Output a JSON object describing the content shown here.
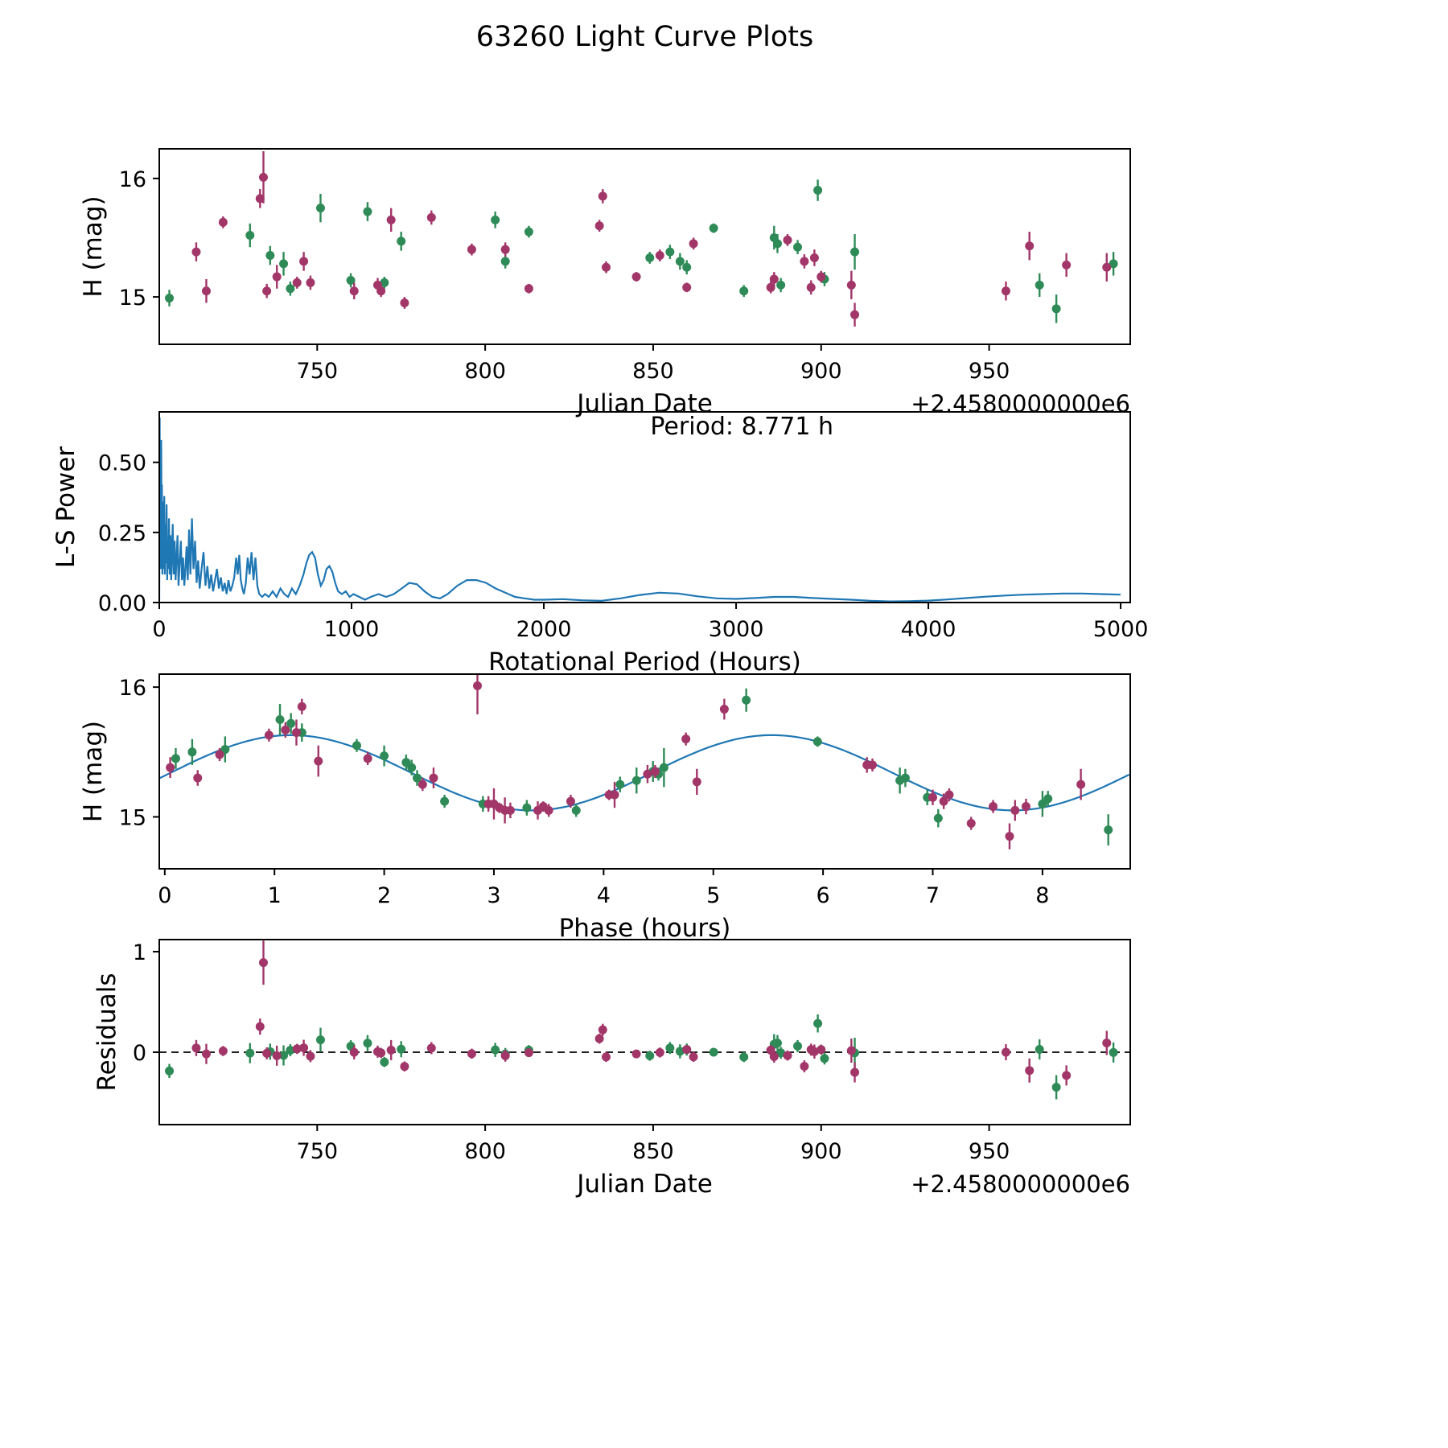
{
  "colors": {
    "green": "#2e8b57",
    "purple": "#a23669",
    "line": "#1f77b4",
    "axis": "#000000",
    "background": "#ffffff"
  },
  "chart_data": {
    "title": "63260 Light Curve Plots",
    "observation_columns": [
      "jd_minus_2458000",
      "phase_hours",
      "mag",
      "err",
      "series"
    ],
    "series_colors": {
      "g": "#2e8b57",
      "p": "#a23669"
    },
    "observations": [
      [
        706,
        7.05,
        14.99,
        0.07,
        "g"
      ],
      [
        730,
        0.55,
        15.52,
        0.1,
        "g"
      ],
      [
        736,
        4.45,
        15.35,
        0.08,
        "g"
      ],
      [
        740,
        6.7,
        15.28,
        0.1,
        "g"
      ],
      [
        742,
        3.3,
        15.07,
        0.06,
        "g"
      ],
      [
        751,
        1.05,
        15.75,
        0.12,
        "g"
      ],
      [
        760,
        8.05,
        15.14,
        0.06,
        "g"
      ],
      [
        765,
        1.15,
        15.72,
        0.08,
        "g"
      ],
      [
        770,
        2.55,
        15.12,
        0.05,
        "g"
      ],
      [
        775,
        2.0,
        15.47,
        0.08,
        "g"
      ],
      [
        803,
        1.25,
        15.65,
        0.07,
        "g"
      ],
      [
        806,
        2.3,
        15.3,
        0.06,
        "g"
      ],
      [
        813,
        1.75,
        15.55,
        0.05,
        "g"
      ],
      [
        849,
        4.5,
        15.33,
        0.05,
        "g"
      ],
      [
        855,
        2.25,
        15.38,
        0.06,
        "g"
      ],
      [
        858,
        6.75,
        15.3,
        0.07,
        "g"
      ],
      [
        860,
        4.15,
        15.25,
        0.06,
        "g"
      ],
      [
        868,
        5.95,
        15.58,
        0.04,
        "g"
      ],
      [
        877,
        3.75,
        15.05,
        0.05,
        "g"
      ],
      [
        886,
        0.25,
        15.5,
        0.1,
        "g"
      ],
      [
        887,
        0.1,
        15.45,
        0.08,
        "g"
      ],
      [
        888,
        2.9,
        15.1,
        0.06,
        "g"
      ],
      [
        893,
        2.2,
        15.42,
        0.06,
        "g"
      ],
      [
        899,
        5.3,
        15.9,
        0.09,
        "g"
      ],
      [
        901,
        6.95,
        15.15,
        0.06,
        "g"
      ],
      [
        910,
        4.55,
        15.38,
        0.15,
        "g"
      ],
      [
        965,
        8.0,
        15.1,
        0.1,
        "g"
      ],
      [
        970,
        8.6,
        14.9,
        0.12,
        "g"
      ],
      [
        987,
        4.3,
        15.28,
        0.1,
        "g"
      ],
      [
        714,
        0.05,
        15.38,
        0.08,
        "p"
      ],
      [
        717,
        3.1,
        15.05,
        0.1,
        "p"
      ],
      [
        722,
        0.95,
        15.63,
        0.05,
        "p"
      ],
      [
        733,
        5.1,
        15.83,
        0.08,
        "p"
      ],
      [
        734,
        2.85,
        16.01,
        0.22,
        "p"
      ],
      [
        735,
        3.15,
        15.05,
        0.06,
        "p"
      ],
      [
        738,
        4.1,
        15.17,
        0.1,
        "p"
      ],
      [
        744,
        3.7,
        15.12,
        0.05,
        "p"
      ],
      [
        746,
        2.45,
        15.3,
        0.08,
        "p"
      ],
      [
        748,
        7.1,
        15.12,
        0.06,
        "p"
      ],
      [
        761,
        3.4,
        15.05,
        0.07,
        "p"
      ],
      [
        768,
        2.95,
        15.1,
        0.06,
        "p"
      ],
      [
        769,
        3.5,
        15.05,
        0.05,
        "p"
      ],
      [
        772,
        1.2,
        15.65,
        0.1,
        "p"
      ],
      [
        776,
        7.35,
        14.95,
        0.05,
        "p"
      ],
      [
        784,
        1.1,
        15.67,
        0.06,
        "p"
      ],
      [
        796,
        6.45,
        15.4,
        0.05,
        "p"
      ],
      [
        806,
        6.4,
        15.4,
        0.06,
        "p"
      ],
      [
        813,
        3.05,
        15.07,
        0.04,
        "p"
      ],
      [
        834,
        4.75,
        15.6,
        0.05,
        "p"
      ],
      [
        835,
        1.25,
        15.85,
        0.06,
        "p"
      ],
      [
        836,
        2.35,
        15.25,
        0.05,
        "p"
      ],
      [
        845,
        4.05,
        15.17,
        0.04,
        "p"
      ],
      [
        852,
        4.47,
        15.35,
        0.05,
        "p"
      ],
      [
        860,
        3.45,
        15.08,
        0.04,
        "p"
      ],
      [
        862,
        1.85,
        15.45,
        0.05,
        "p"
      ],
      [
        885,
        7.55,
        15.08,
        0.05,
        "p"
      ],
      [
        886,
        7.0,
        15.15,
        0.06,
        "p"
      ],
      [
        890,
        0.5,
        15.48,
        0.05,
        "p"
      ],
      [
        895,
        0.3,
        15.3,
        0.06,
        "p"
      ],
      [
        897,
        7.85,
        15.08,
        0.06,
        "p"
      ],
      [
        898,
        4.4,
        15.33,
        0.07,
        "p"
      ],
      [
        900,
        7.15,
        15.17,
        0.05,
        "p"
      ],
      [
        909,
        3.0,
        15.1,
        0.12,
        "p"
      ],
      [
        910,
        7.7,
        14.85,
        0.1,
        "p"
      ],
      [
        955,
        7.75,
        15.05,
        0.08,
        "p"
      ],
      [
        962,
        1.4,
        15.43,
        0.12,
        "p"
      ],
      [
        973,
        4.85,
        15.27,
        0.1,
        "p"
      ],
      [
        985,
        8.35,
        15.25,
        0.12,
        "p"
      ]
    ],
    "panels": [
      {
        "id": "lightcurve",
        "type": "scatter",
        "xlabel": "Julian Date",
        "x_offset_label": "+2.4580000000e6",
        "ylabel": "H (mag)",
        "xlim": [
          703,
          992
        ],
        "ylim": [
          14.6,
          16.25
        ],
        "xticks": [
          750,
          800,
          850,
          900,
          950
        ],
        "yticks": [
          15,
          16
        ],
        "yticklabels": [
          "15",
          "16"
        ]
      },
      {
        "id": "periodogram",
        "type": "line",
        "xlabel": "Rotational Period (Hours)",
        "ylabel": "L-S Power",
        "annotation": "Period: 8.771 h",
        "xlim": [
          0,
          5050
        ],
        "ylim": [
          0,
          0.68
        ],
        "xticks": [
          0,
          1000,
          2000,
          3000,
          4000,
          5000
        ],
        "yticks": [
          0,
          0.25,
          0.5
        ],
        "yticklabels": [
          "0.00",
          "0.25",
          "0.50"
        ],
        "points": [
          [
            0,
            0.01
          ],
          [
            2,
            0.66
          ],
          [
            4,
            0.18
          ],
          [
            6,
            0.52
          ],
          [
            8,
            0.12
          ],
          [
            10,
            0.58
          ],
          [
            12,
            0.25
          ],
          [
            14,
            0.42
          ],
          [
            16,
            0.1
          ],
          [
            18,
            0.36
          ],
          [
            20,
            0.3
          ],
          [
            23,
            0.12
          ],
          [
            26,
            0.38
          ],
          [
            29,
            0.1
          ],
          [
            32,
            0.28
          ],
          [
            35,
            0.14
          ],
          [
            38,
            0.35
          ],
          [
            41,
            0.08
          ],
          [
            44,
            0.22
          ],
          [
            47,
            0.12
          ],
          [
            50,
            0.3
          ],
          [
            54,
            0.1
          ],
          [
            58,
            0.24
          ],
          [
            62,
            0.08
          ],
          [
            66,
            0.18
          ],
          [
            70,
            0.28
          ],
          [
            75,
            0.1
          ],
          [
            80,
            0.22
          ],
          [
            85,
            0.08
          ],
          [
            90,
            0.16
          ],
          [
            95,
            0.24
          ],
          [
            100,
            0.06
          ],
          [
            106,
            0.14
          ],
          [
            112,
            0.22
          ],
          [
            118,
            0.08
          ],
          [
            124,
            0.16
          ],
          [
            130,
            0.06
          ],
          [
            136,
            0.12
          ],
          [
            142,
            0.2
          ],
          [
            148,
            0.08
          ],
          [
            155,
            0.26
          ],
          [
            162,
            0.1
          ],
          [
            170,
            0.3
          ],
          [
            178,
            0.12
          ],
          [
            186,
            0.22
          ],
          [
            194,
            0.07
          ],
          [
            202,
            0.15
          ],
          [
            210,
            0.05
          ],
          [
            220,
            0.12
          ],
          [
            230,
            0.18
          ],
          [
            240,
            0.06
          ],
          [
            250,
            0.13
          ],
          [
            260,
            0.05
          ],
          [
            270,
            0.1
          ],
          [
            280,
            0.04
          ],
          [
            290,
            0.08
          ],
          [
            300,
            0.12
          ],
          [
            310,
            0.05
          ],
          [
            320,
            0.09
          ],
          [
            330,
            0.04
          ],
          [
            340,
            0.07
          ],
          [
            350,
            0.03
          ],
          [
            360,
            0.08
          ],
          [
            370,
            0.04
          ],
          [
            380,
            0.06
          ],
          [
            390,
            0.09
          ],
          [
            400,
            0.16
          ],
          [
            408,
            0.1
          ],
          [
            416,
            0.17
          ],
          [
            424,
            0.08
          ],
          [
            432,
            0.05
          ],
          [
            440,
            0.03
          ],
          [
            450,
            0.07
          ],
          [
            460,
            0.16
          ],
          [
            470,
            0.1
          ],
          [
            480,
            0.18
          ],
          [
            490,
            0.08
          ],
          [
            500,
            0.16
          ],
          [
            510,
            0.06
          ],
          [
            520,
            0.03
          ],
          [
            535,
            0.02
          ],
          [
            550,
            0.03
          ],
          [
            570,
            0.02
          ],
          [
            590,
            0.04
          ],
          [
            610,
            0.02
          ],
          [
            630,
            0.05
          ],
          [
            650,
            0.03
          ],
          [
            670,
            0.02
          ],
          [
            690,
            0.05
          ],
          [
            710,
            0.03
          ],
          [
            730,
            0.06
          ],
          [
            750,
            0.1
          ],
          [
            765,
            0.14
          ],
          [
            780,
            0.17
          ],
          [
            795,
            0.18
          ],
          [
            810,
            0.16
          ],
          [
            825,
            0.1
          ],
          [
            840,
            0.06
          ],
          [
            855,
            0.08
          ],
          [
            870,
            0.12
          ],
          [
            885,
            0.13
          ],
          [
            900,
            0.11
          ],
          [
            915,
            0.07
          ],
          [
            930,
            0.04
          ],
          [
            950,
            0.03
          ],
          [
            970,
            0.04
          ],
          [
            990,
            0.02
          ],
          [
            1010,
            0.03
          ],
          [
            1040,
            0.02
          ],
          [
            1070,
            0.01
          ],
          [
            1100,
            0.02
          ],
          [
            1140,
            0.03
          ],
          [
            1180,
            0.02
          ],
          [
            1220,
            0.03
          ],
          [
            1260,
            0.05
          ],
          [
            1300,
            0.07
          ],
          [
            1340,
            0.065
          ],
          [
            1380,
            0.04
          ],
          [
            1420,
            0.02
          ],
          [
            1460,
            0.015
          ],
          [
            1500,
            0.03
          ],
          [
            1550,
            0.06
          ],
          [
            1600,
            0.08
          ],
          [
            1650,
            0.08
          ],
          [
            1700,
            0.07
          ],
          [
            1750,
            0.05
          ],
          [
            1800,
            0.035
          ],
          [
            1850,
            0.02
          ],
          [
            1900,
            0.015
          ],
          [
            1950,
            0.01
          ],
          [
            2000,
            0.01
          ],
          [
            2100,
            0.012
          ],
          [
            2200,
            0.008
          ],
          [
            2300,
            0.006
          ],
          [
            2400,
            0.015
          ],
          [
            2500,
            0.027
          ],
          [
            2600,
            0.035
          ],
          [
            2700,
            0.032
          ],
          [
            2800,
            0.022
          ],
          [
            2900,
            0.015
          ],
          [
            3000,
            0.013
          ],
          [
            3100,
            0.016
          ],
          [
            3200,
            0.02
          ],
          [
            3300,
            0.02
          ],
          [
            3400,
            0.016
          ],
          [
            3500,
            0.013
          ],
          [
            3600,
            0.01
          ],
          [
            3700,
            0.006
          ],
          [
            3800,
            0.004
          ],
          [
            3900,
            0.005
          ],
          [
            4000,
            0.007
          ],
          [
            4100,
            0.011
          ],
          [
            4200,
            0.016
          ],
          [
            4300,
            0.021
          ],
          [
            4400,
            0.025
          ],
          [
            4500,
            0.028
          ],
          [
            4600,
            0.03
          ],
          [
            4700,
            0.032
          ],
          [
            4800,
            0.032
          ],
          [
            4900,
            0.03
          ],
          [
            5000,
            0.028
          ]
        ]
      },
      {
        "id": "phase",
        "type": "scatter+line",
        "xlabel": "Phase (hours)",
        "ylabel": "H (mag)",
        "xlim": [
          -0.05,
          8.8
        ],
        "ylim": [
          14.6,
          16.1
        ],
        "xticks": [
          0,
          1,
          2,
          3,
          4,
          5,
          6,
          7,
          8
        ],
        "yticks": [
          15,
          16
        ],
        "yticklabels": [
          "15",
          "16"
        ],
        "fit": {
          "mean": 15.34,
          "amplitude": 0.29,
          "period_hours": 8.771,
          "phase_of_max": 1.15,
          "harmonic": 2
        }
      },
      {
        "id": "residuals",
        "type": "scatter",
        "xlabel": "Julian Date",
        "x_offset_label": "+2.4580000000e6",
        "ylabel": "Residuals",
        "xlim": [
          703,
          992
        ],
        "ylim": [
          -0.72,
          1.12
        ],
        "xticks": [
          750,
          800,
          850,
          900,
          950
        ],
        "yticks": [
          0,
          1
        ],
        "yticklabels": [
          "0",
          "1"
        ],
        "zero_line": true
      }
    ]
  }
}
